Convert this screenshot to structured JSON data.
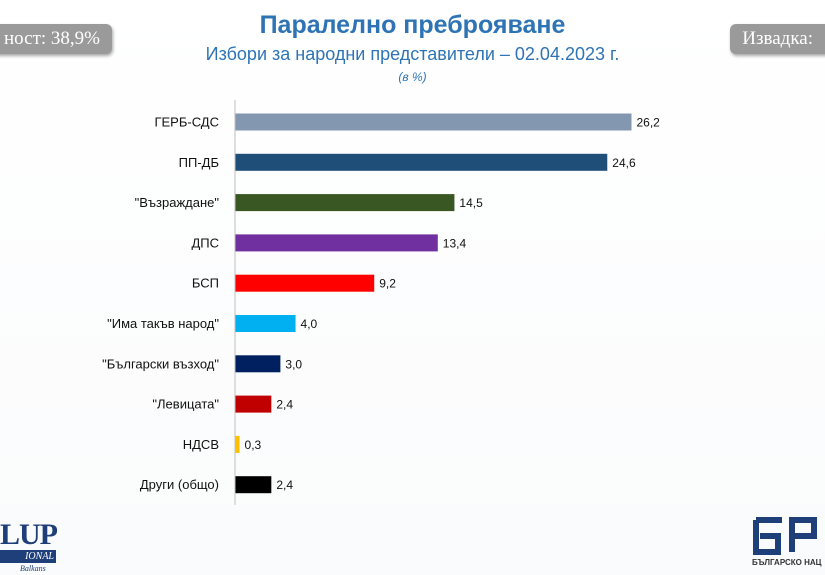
{
  "header": {
    "left_pill": "ност: 38,9%",
    "right_pill": "Извадка:",
    "title": "Паралелно преброяване",
    "subtitle": "Избори за народни представители – 02.04.2023 г.",
    "unit": "(в %)"
  },
  "logos": {
    "left_big": "LUP",
    "left_band": "IONAL",
    "left_small": "Balkans",
    "right_caption": "БЪЛГАРСКО НАЦ"
  },
  "chart_data": {
    "type": "bar",
    "orientation": "horizontal",
    "title": "Паралелно преброяване",
    "subtitle": "Избори за народни представители – 02.04.2023 г.",
    "unit": "(в %)",
    "categories": [
      "ГЕРБ-СДС",
      "ПП-ДБ",
      "\"Възраждане\"",
      "ДПС",
      "БСП",
      "\"Има такъв народ\"",
      "\"Български възход\"",
      "\"Левицата\"",
      "НДСВ",
      "Други (общо)"
    ],
    "values": [
      26.2,
      24.6,
      14.5,
      13.4,
      9.2,
      4.0,
      3.0,
      2.4,
      0.3,
      2.4
    ],
    "value_labels": [
      "26,2",
      "24,6",
      "14,5",
      "13,4",
      "9,2",
      "4,0",
      "3,0",
      "2,4",
      "0,3",
      "2,4"
    ],
    "colors": [
      "#8497b0",
      "#1f4e79",
      "#385723",
      "#7030a0",
      "#ff0000",
      "#00b0f0",
      "#002060",
      "#c00000",
      "#ffc000",
      "#000000"
    ],
    "xlim": [
      0,
      30
    ],
    "grid": false,
    "legend": "none"
  }
}
